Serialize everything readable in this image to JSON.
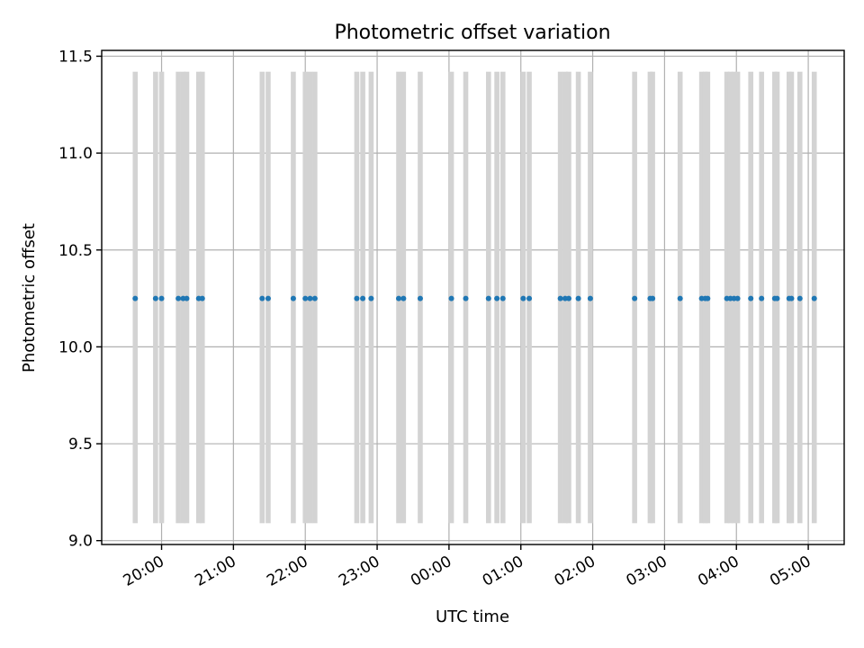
{
  "chart_data": {
    "type": "scatter",
    "title": "Photometric offset variation",
    "xlabel": "UTC time",
    "ylabel": "Photometric offset",
    "x_start": "19:10",
    "x_end": "05:30",
    "ylim": [
      8.98,
      11.53
    ],
    "grid": true,
    "yticks": [
      "9.0",
      "9.5",
      "10.0",
      "10.5",
      "11.0",
      "11.5"
    ],
    "xticks": [
      "20:00",
      "21:00",
      "22:00",
      "23:00",
      "00:00",
      "01:00",
      "02:00",
      "03:00",
      "04:00",
      "05:00"
    ],
    "band_y_range": [
      9.09,
      11.42
    ],
    "band_color": "#d3d3d3",
    "point_color": "#1f77b4",
    "points": [
      {
        "x": "19:38",
        "y": 10.25
      },
      {
        "x": "19:55",
        "y": 10.25
      },
      {
        "x": "20:00",
        "y": 10.25
      },
      {
        "x": "20:14",
        "y": 10.25
      },
      {
        "x": "20:18",
        "y": 10.25
      },
      {
        "x": "20:21",
        "y": 10.25
      },
      {
        "x": "20:31",
        "y": 10.25
      },
      {
        "x": "20:34",
        "y": 10.25
      },
      {
        "x": "21:24",
        "y": 10.25
      },
      {
        "x": "21:29",
        "y": 10.25
      },
      {
        "x": "21:50",
        "y": 10.25
      },
      {
        "x": "22:00",
        "y": 10.25
      },
      {
        "x": "22:04",
        "y": 10.25
      },
      {
        "x": "22:08",
        "y": 10.25
      },
      {
        "x": "22:43",
        "y": 10.25
      },
      {
        "x": "22:48",
        "y": 10.25
      },
      {
        "x": "22:55",
        "y": 10.25
      },
      {
        "x": "23:18",
        "y": 10.25
      },
      {
        "x": "23:22",
        "y": 10.25
      },
      {
        "x": "23:36",
        "y": 10.25
      },
      {
        "x": "00:02",
        "y": 10.25
      },
      {
        "x": "00:14",
        "y": 10.25
      },
      {
        "x": "00:33",
        "y": 10.25
      },
      {
        "x": "00:40",
        "y": 10.25
      },
      {
        "x": "00:45",
        "y": 10.25
      },
      {
        "x": "01:02",
        "y": 10.25
      },
      {
        "x": "01:07",
        "y": 10.25
      },
      {
        "x": "01:33",
        "y": 10.25
      },
      {
        "x": "01:37",
        "y": 10.25
      },
      {
        "x": "01:40",
        "y": 10.25
      },
      {
        "x": "01:48",
        "y": 10.25
      },
      {
        "x": "01:58",
        "y": 10.25
      },
      {
        "x": "02:35",
        "y": 10.25
      },
      {
        "x": "02:48",
        "y": 10.25
      },
      {
        "x": "02:50",
        "y": 10.25
      },
      {
        "x": "03:13",
        "y": 10.25
      },
      {
        "x": "03:31",
        "y": 10.25
      },
      {
        "x": "03:34",
        "y": 10.25
      },
      {
        "x": "03:36",
        "y": 10.25
      },
      {
        "x": "03:52",
        "y": 10.25
      },
      {
        "x": "03:55",
        "y": 10.25
      },
      {
        "x": "03:58",
        "y": 10.25
      },
      {
        "x": "04:01",
        "y": 10.25
      },
      {
        "x": "04:12",
        "y": 10.25
      },
      {
        "x": "04:21",
        "y": 10.25
      },
      {
        "x": "04:32",
        "y": 10.25
      },
      {
        "x": "04:34",
        "y": 10.25
      },
      {
        "x": "04:44",
        "y": 10.25
      },
      {
        "x": "04:46",
        "y": 10.25
      },
      {
        "x": "04:53",
        "y": 10.25
      },
      {
        "x": "05:05",
        "y": 10.25
      }
    ]
  }
}
